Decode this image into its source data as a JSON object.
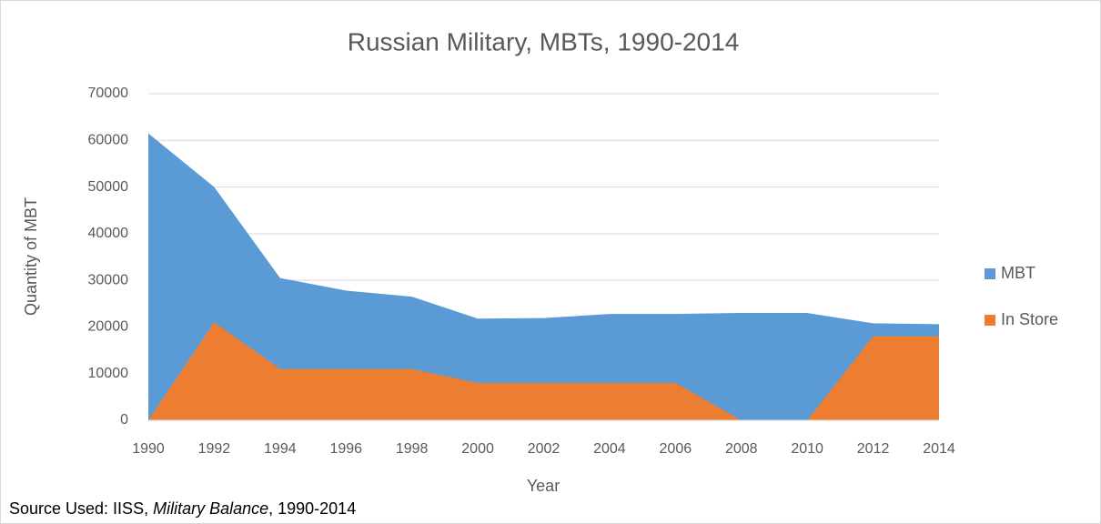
{
  "chart_data": {
    "type": "area",
    "title": "Russian Military, MBTs, 1990-2014",
    "x_label": "Year",
    "y_label": "Quantity of MBT",
    "x": [
      1990,
      1992,
      1994,
      1996,
      1998,
      2000,
      2002,
      2004,
      2006,
      2008,
      2010,
      2012,
      2014
    ],
    "series": [
      {
        "name": "MBT",
        "color": "#5b9bd5",
        "values": [
          61500,
          50000,
          30500,
          27800,
          26500,
          21800,
          21900,
          22800,
          22800,
          23000,
          23000,
          20800,
          20600
        ]
      },
      {
        "name": "In Store",
        "color": "#ed7d31",
        "values": [
          0,
          21000,
          11000,
          11000,
          11000,
          8000,
          8000,
          8000,
          8000,
          0,
          0,
          18000,
          18000
        ]
      }
    ],
    "xlim": [
      1990,
      2014
    ],
    "xticks": [
      1990,
      1992,
      1994,
      1996,
      1998,
      2000,
      2002,
      2004,
      2006,
      2008,
      2010,
      2012,
      2014
    ],
    "ylim": [
      0,
      70000
    ],
    "yticks": [
      0,
      10000,
      20000,
      30000,
      40000,
      50000,
      60000,
      70000
    ],
    "grid": true,
    "legend": "right"
  },
  "source": {
    "prefix": "Source Used: IISS, ",
    "italic": "Military Balance",
    "suffix": ", 1990-2014"
  }
}
